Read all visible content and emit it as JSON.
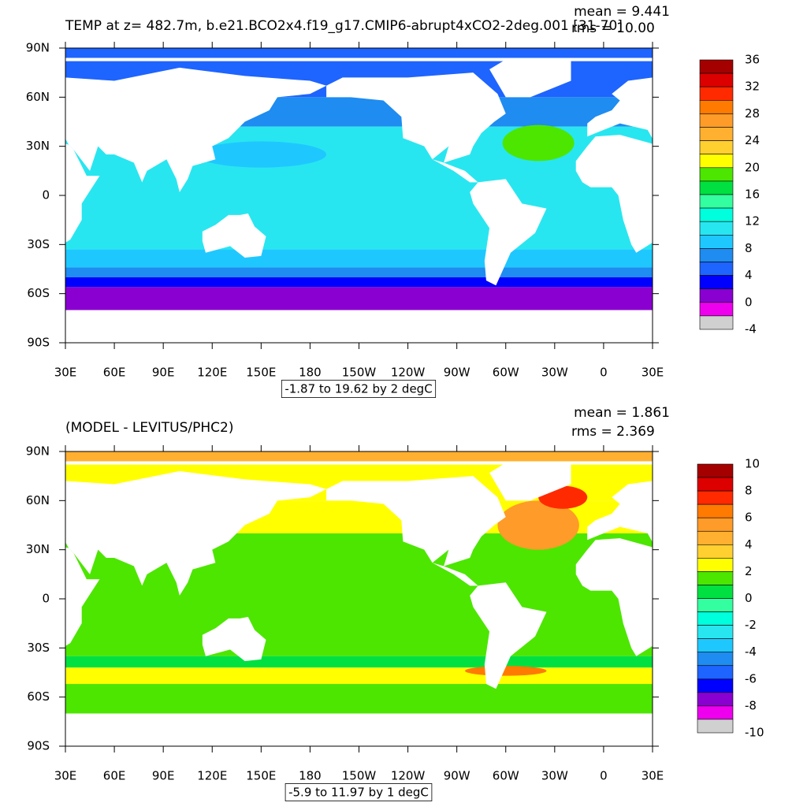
{
  "panels": [
    {
      "title": "TEMP at z= 482.7m, b.e21.BCO2x4.f19_g17.CMIP6-abrupt4xCO2-2deg.001 [31-70]",
      "mean": "mean = 9.441",
      "rms": "rms = 10.00",
      "yticks": [
        "90N",
        "60N",
        "30N",
        "0",
        "30S",
        "60S",
        "90S"
      ],
      "xticks": [
        "30E",
        "60E",
        "90E",
        "120E",
        "150E",
        "180",
        "150W",
        "120W",
        "90W",
        "60W",
        "30W",
        "0",
        "30E"
      ],
      "colorbar": {
        "labels": [
          36,
          32,
          28,
          24,
          20,
          16,
          12,
          8,
          4,
          0,
          -4
        ],
        "colors": [
          "#a50000",
          "#dc0000",
          "#ff2a00",
          "#ff7a00",
          "#ff9b28",
          "#ffb030",
          "#ffd030",
          "#ffff00",
          "#4ce600",
          "#00e040",
          "#33ffa0",
          "#00ffdc",
          "#28e6f0",
          "#1ec8ff",
          "#1e8cf0",
          "#1e64ff",
          "#0000ff",
          "#8a00d0",
          "#ee00ee",
          "#d0d0d0",
          "#707070"
        ]
      },
      "info": "-1.87 to 19.62 by 2 degC"
    },
    {
      "title": "(MODEL - LEVITUS/PHC2)",
      "mean": "mean = 1.861",
      "rms": "rms = 2.369",
      "yticks": [
        "90N",
        "60N",
        "30N",
        "0",
        "30S",
        "60S",
        "90S"
      ],
      "xticks": [
        "30E",
        "60E",
        "90E",
        "120E",
        "150E",
        "180",
        "150W",
        "120W",
        "90W",
        "60W",
        "30W",
        "0",
        "30E"
      ],
      "colorbar": {
        "labels": [
          10,
          8,
          6,
          4,
          2,
          0,
          -2,
          -4,
          -6,
          -8,
          -10
        ],
        "colors": [
          "#a50000",
          "#dc0000",
          "#ff2a00",
          "#ff7a00",
          "#ff9b28",
          "#ffb030",
          "#ffd030",
          "#ffff00",
          "#4ce600",
          "#00e040",
          "#33ffa0",
          "#00ffdc",
          "#28e6f0",
          "#1ec8ff",
          "#1e8cf0",
          "#1e64ff",
          "#0000ff",
          "#8a00d0",
          "#ee00ee",
          "#d0d0d0",
          "#707070"
        ]
      },
      "info": "-5.9 to 11.97 by 1 degC"
    }
  ]
}
